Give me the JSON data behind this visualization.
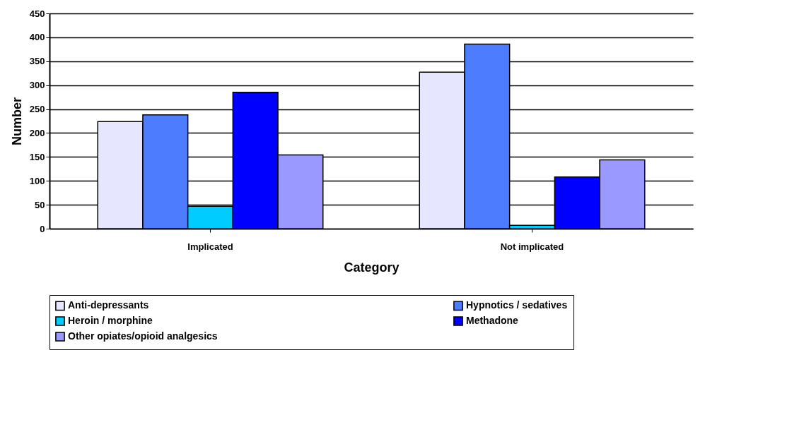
{
  "chart_data": {
    "type": "bar",
    "xlabel": "Category",
    "ylabel": "Number",
    "categories": [
      "Implicated",
      "Not implicated"
    ],
    "series": [
      {
        "name": "Anti-depressants",
        "color": "#e6e6ff",
        "values": [
          224,
          327
        ]
      },
      {
        "name": "Hypnotics / sedatives",
        "color": "#4d7cff",
        "values": [
          238,
          386
        ]
      },
      {
        "name": "Heroin / morphine",
        "color": "#00ccff",
        "values": [
          47,
          7
        ]
      },
      {
        "name": "Methadone",
        "color": "#0000ff",
        "values": [
          285,
          108
        ]
      },
      {
        "name": "Other opiates/opioid analgesics",
        "color": "#9999ff",
        "values": [
          154,
          144
        ]
      }
    ],
    "ylim": [
      0,
      450
    ],
    "yticks": [
      0,
      50,
      100,
      150,
      200,
      250,
      300,
      350,
      400,
      450
    ],
    "grid": "y",
    "legend": "bottom"
  }
}
